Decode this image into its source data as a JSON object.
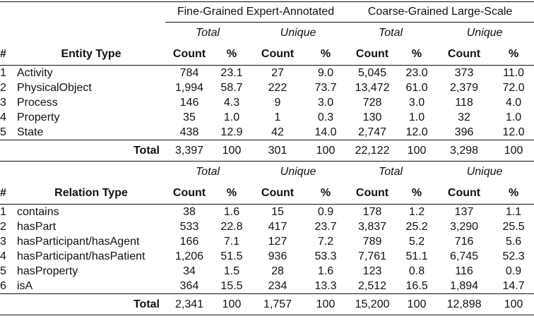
{
  "groups": {
    "fine": "Fine-Grained Expert-Annotated",
    "coarse": "Coarse-Grained Large-Scale"
  },
  "subheads": {
    "total": "Total",
    "unique": "Unique"
  },
  "columns": {
    "num": "#",
    "entity_type": "Entity Type",
    "relation_type": "Relation Type",
    "count": "Count",
    "pct": "%"
  },
  "entity_rows": [
    {
      "n": "1",
      "name": "Activity",
      "fc": "784",
      "fp": "23.1",
      "fuc": "27",
      "fup": "9.0",
      "cc": "5,045",
      "cp": "23.0",
      "cuc": "373",
      "cup": "11.0"
    },
    {
      "n": "2",
      "name": "PhysicalObject",
      "fc": "1,994",
      "fp": "58.7",
      "fuc": "222",
      "fup": "73.7",
      "cc": "13,472",
      "cp": "61.0",
      "cuc": "2,379",
      "cup": "72.0"
    },
    {
      "n": "3",
      "name": "Process",
      "fc": "146",
      "fp": "4.3",
      "fuc": "9",
      "fup": "3.0",
      "cc": "728",
      "cp": "3.0",
      "cuc": "118",
      "cup": "4.0"
    },
    {
      "n": "4",
      "name": "Property",
      "fc": "35",
      "fp": "1.0",
      "fuc": "1",
      "fup": "0.3",
      "cc": "130",
      "cp": "1.0",
      "cuc": "32",
      "cup": "1.0"
    },
    {
      "n": "5",
      "name": "State",
      "fc": "438",
      "fp": "12.9",
      "fuc": "42",
      "fup": "14.0",
      "cc": "2,747",
      "cp": "12.0",
      "cuc": "396",
      "cup": "12.0"
    }
  ],
  "entity_total": {
    "label": "Total",
    "fc": "3,397",
    "fp": "100",
    "fuc": "301",
    "fup": "100",
    "cc": "22,122",
    "cp": "100",
    "cuc": "3,298",
    "cup": "100"
  },
  "relation_rows": [
    {
      "n": "1",
      "name": "contains",
      "fc": "38",
      "fp": "1.6",
      "fuc": "15",
      "fup": "0.9",
      "cc": "178",
      "cp": "1.2",
      "cuc": "137",
      "cup": "1.1"
    },
    {
      "n": "2",
      "name": "hasPart",
      "fc": "533",
      "fp": "22.8",
      "fuc": "417",
      "fup": "23.7",
      "cc": "3,837",
      "cp": "25.2",
      "cuc": "3,290",
      "cup": "25.5"
    },
    {
      "n": "3",
      "name": "hasParticipant/hasAgent",
      "fc": "166",
      "fp": "7.1",
      "fuc": "127",
      "fup": "7.2",
      "cc": "789",
      "cp": "5.2",
      "cuc": "716",
      "cup": "5.6"
    },
    {
      "n": "4",
      "name": "hasParticipant/hasPatient",
      "fc": "1,206",
      "fp": "51.5",
      "fuc": "936",
      "fup": "53.3",
      "cc": "7,761",
      "cp": "51.1",
      "cuc": "6,745",
      "cup": "52.3"
    },
    {
      "n": "5",
      "name": "hasProperty",
      "fc": "34",
      "fp": "1.5",
      "fuc": "28",
      "fup": "1.6",
      "cc": "123",
      "cp": "0.8",
      "cuc": "116",
      "cup": "0.9"
    },
    {
      "n": "6",
      "name": "isA",
      "fc": "364",
      "fp": "15.5",
      "fuc": "234",
      "fup": "13.3",
      "cc": "2,512",
      "cp": "16.5",
      "cuc": "1,894",
      "cup": "14.7"
    }
  ],
  "relation_total": {
    "label": "Total",
    "fc": "2,341",
    "fp": "100",
    "fuc": "1,757",
    "fup": "100",
    "cc": "15,200",
    "cp": "100",
    "cuc": "12,898",
    "cup": "100"
  }
}
